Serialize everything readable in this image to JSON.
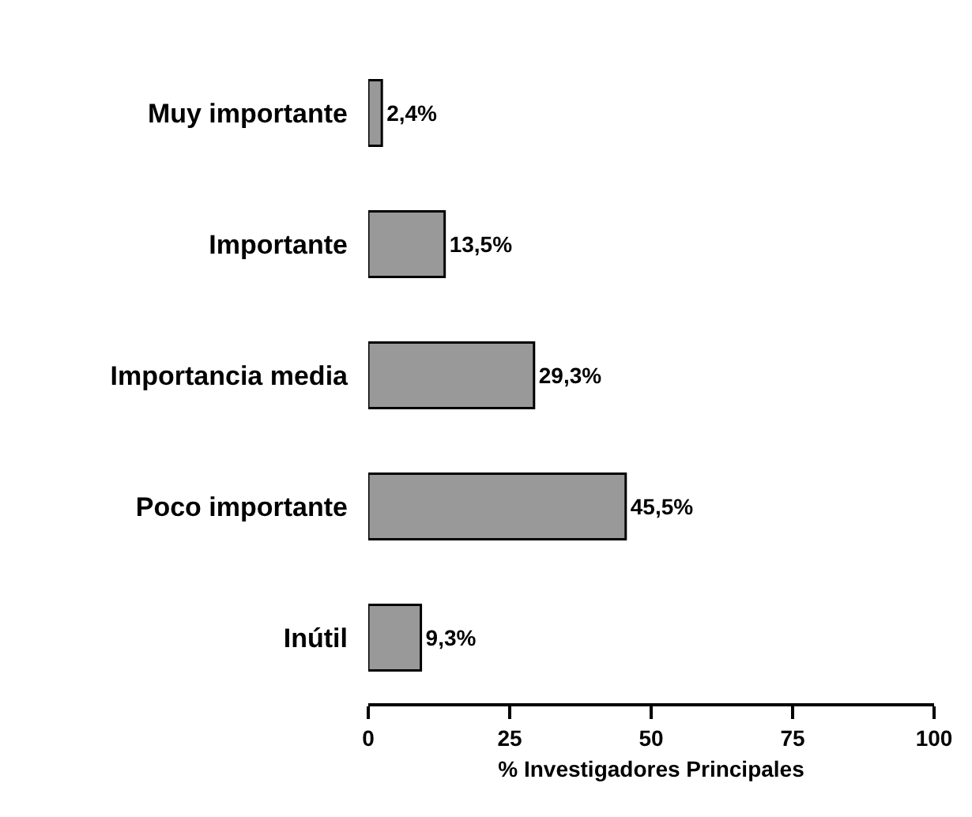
{
  "chart_data": {
    "type": "bar",
    "orientation": "horizontal",
    "xlabel": "% Investigadores Principales",
    "categories": [
      "Muy importante",
      "Importante",
      "Importancia media",
      "Poco importante",
      "Inútil"
    ],
    "values": [
      2.4,
      13.5,
      29.3,
      45.5,
      9.3
    ],
    "value_labels": [
      "2,4%",
      "13,5%",
      "29,3%",
      "45,5%",
      "9,3%"
    ],
    "color": "#999999",
    "xlim": [
      0,
      100
    ],
    "xticks": [
      0,
      25,
      50,
      75,
      100
    ]
  }
}
